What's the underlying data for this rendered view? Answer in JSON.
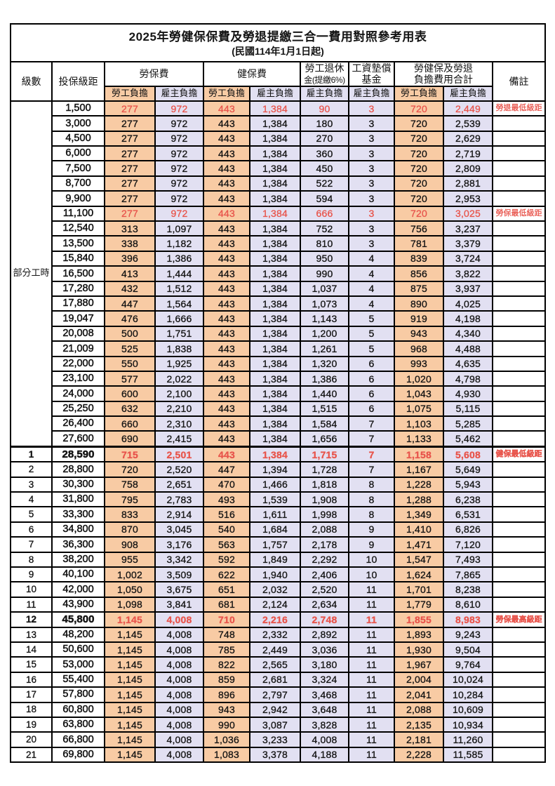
{
  "title": "2025年勞健保保費及勞退提繳三合一費用對照參考用表",
  "subtitle": "(民國114年1月1日起)",
  "colors": {
    "employee_fill": "#f8cba4",
    "employer_fill": "#e2e0f2",
    "highlight_text": "#e8554c",
    "grid": "#000000"
  },
  "header": {
    "level": "級數",
    "bracket": "投保級距",
    "labor_insurance": "勞保費",
    "health_insurance": "健保費",
    "pension_line1": "勞工退休",
    "pension_line2": "金(提繳6%)",
    "wage_fund_line1": "工資墊償",
    "wage_fund_line2": "基金",
    "total_line1": "勞健保及勞退",
    "total_line2": "負擔費用合計",
    "remark": "備註",
    "employee_share": "勞工負擔",
    "employer_share": "雇主負擔"
  },
  "group_label": "部分工時",
  "group_rows": 23,
  "rows": [
    {
      "level": "",
      "bracket": "1,500",
      "values": [
        "277",
        "972",
        "443",
        "1,384",
        "90",
        "3",
        "720",
        "2,449"
      ],
      "remark": "勞退最低級距",
      "red": true,
      "bold": false
    },
    {
      "level": "",
      "bracket": "3,000",
      "values": [
        "277",
        "972",
        "443",
        "1,384",
        "180",
        "3",
        "720",
        "2,539"
      ],
      "remark": "",
      "red": false,
      "bold": false
    },
    {
      "level": "",
      "bracket": "4,500",
      "values": [
        "277",
        "972",
        "443",
        "1,384",
        "270",
        "3",
        "720",
        "2,629"
      ],
      "remark": "",
      "red": false,
      "bold": false
    },
    {
      "level": "",
      "bracket": "6,000",
      "values": [
        "277",
        "972",
        "443",
        "1,384",
        "360",
        "3",
        "720",
        "2,719"
      ],
      "remark": "",
      "red": false,
      "bold": false
    },
    {
      "level": "",
      "bracket": "7,500",
      "values": [
        "277",
        "972",
        "443",
        "1,384",
        "450",
        "3",
        "720",
        "2,809"
      ],
      "remark": "",
      "red": false,
      "bold": false
    },
    {
      "level": "",
      "bracket": "8,700",
      "values": [
        "277",
        "972",
        "443",
        "1,384",
        "522",
        "3",
        "720",
        "2,881"
      ],
      "remark": "",
      "red": false,
      "bold": false
    },
    {
      "level": "",
      "bracket": "9,900",
      "values": [
        "277",
        "972",
        "443",
        "1,384",
        "594",
        "3",
        "720",
        "2,953"
      ],
      "remark": "",
      "red": false,
      "bold": false
    },
    {
      "level": "",
      "bracket": "11,100",
      "values": [
        "277",
        "972",
        "443",
        "1,384",
        "666",
        "3",
        "720",
        "3,025"
      ],
      "remark": "勞保最低級距",
      "red": true,
      "bold": false
    },
    {
      "level": "",
      "bracket": "12,540",
      "values": [
        "313",
        "1,097",
        "443",
        "1,384",
        "752",
        "3",
        "756",
        "3,237"
      ],
      "remark": "",
      "red": false,
      "bold": false
    },
    {
      "level": "",
      "bracket": "13,500",
      "values": [
        "338",
        "1,182",
        "443",
        "1,384",
        "810",
        "3",
        "781",
        "3,379"
      ],
      "remark": "",
      "red": false,
      "bold": false
    },
    {
      "level": "",
      "bracket": "15,840",
      "values": [
        "396",
        "1,386",
        "443",
        "1,384",
        "950",
        "4",
        "839",
        "3,724"
      ],
      "remark": "",
      "red": false,
      "bold": false
    },
    {
      "level": "",
      "bracket": "16,500",
      "values": [
        "413",
        "1,444",
        "443",
        "1,384",
        "990",
        "4",
        "856",
        "3,822"
      ],
      "remark": "",
      "red": false,
      "bold": false
    },
    {
      "level": "",
      "bracket": "17,280",
      "values": [
        "432",
        "1,512",
        "443",
        "1,384",
        "1,037",
        "4",
        "875",
        "3,937"
      ],
      "remark": "",
      "red": false,
      "bold": false
    },
    {
      "level": "",
      "bracket": "17,880",
      "values": [
        "447",
        "1,564",
        "443",
        "1,384",
        "1,073",
        "4",
        "890",
        "4,025"
      ],
      "remark": "",
      "red": false,
      "bold": false
    },
    {
      "level": "",
      "bracket": "19,047",
      "values": [
        "476",
        "1,666",
        "443",
        "1,384",
        "1,143",
        "5",
        "919",
        "4,198"
      ],
      "remark": "",
      "red": false,
      "bold": false
    },
    {
      "level": "",
      "bracket": "20,008",
      "values": [
        "500",
        "1,751",
        "443",
        "1,384",
        "1,200",
        "5",
        "943",
        "4,340"
      ],
      "remark": "",
      "red": false,
      "bold": false
    },
    {
      "level": "",
      "bracket": "21,009",
      "values": [
        "525",
        "1,838",
        "443",
        "1,384",
        "1,261",
        "5",
        "968",
        "4,488"
      ],
      "remark": "",
      "red": false,
      "bold": false
    },
    {
      "level": "",
      "bracket": "22,000",
      "values": [
        "550",
        "1,925",
        "443",
        "1,384",
        "1,320",
        "6",
        "993",
        "4,635"
      ],
      "remark": "",
      "red": false,
      "bold": false
    },
    {
      "level": "",
      "bracket": "23,100",
      "values": [
        "577",
        "2,022",
        "443",
        "1,384",
        "1,386",
        "6",
        "1,020",
        "4,798"
      ],
      "remark": "",
      "red": false,
      "bold": false
    },
    {
      "level": "",
      "bracket": "24,000",
      "values": [
        "600",
        "2,100",
        "443",
        "1,384",
        "1,440",
        "6",
        "1,043",
        "4,930"
      ],
      "remark": "",
      "red": false,
      "bold": false
    },
    {
      "level": "",
      "bracket": "25,250",
      "values": [
        "632",
        "2,210",
        "443",
        "1,384",
        "1,515",
        "6",
        "1,075",
        "5,115"
      ],
      "remark": "",
      "red": false,
      "bold": false
    },
    {
      "level": "",
      "bracket": "26,400",
      "values": [
        "660",
        "2,310",
        "443",
        "1,384",
        "1,584",
        "7",
        "1,103",
        "5,285"
      ],
      "remark": "",
      "red": false,
      "bold": false
    },
    {
      "level": "",
      "bracket": "27,600",
      "values": [
        "690",
        "2,415",
        "443",
        "1,384",
        "1,656",
        "7",
        "1,133",
        "5,462"
      ],
      "remark": "",
      "red": false,
      "bold": false
    },
    {
      "level": "1",
      "bracket": "28,590",
      "values": [
        "715",
        "2,501",
        "443",
        "1,384",
        "1,715",
        "7",
        "1,158",
        "5,608"
      ],
      "remark": "健保最低級距",
      "red": true,
      "bold": true
    },
    {
      "level": "2",
      "bracket": "28,800",
      "values": [
        "720",
        "2,520",
        "447",
        "1,394",
        "1,728",
        "7",
        "1,167",
        "5,649"
      ],
      "remark": "",
      "red": false,
      "bold": false
    },
    {
      "level": "3",
      "bracket": "30,300",
      "values": [
        "758",
        "2,651",
        "470",
        "1,466",
        "1,818",
        "8",
        "1,228",
        "5,943"
      ],
      "remark": "",
      "red": false,
      "bold": false
    },
    {
      "level": "4",
      "bracket": "31,800",
      "values": [
        "795",
        "2,783",
        "493",
        "1,539",
        "1,908",
        "8",
        "1,288",
        "6,238"
      ],
      "remark": "",
      "red": false,
      "bold": false
    },
    {
      "level": "5",
      "bracket": "33,300",
      "values": [
        "833",
        "2,914",
        "516",
        "1,611",
        "1,998",
        "8",
        "1,349",
        "6,531"
      ],
      "remark": "",
      "red": false,
      "bold": false
    },
    {
      "level": "6",
      "bracket": "34,800",
      "values": [
        "870",
        "3,045",
        "540",
        "1,684",
        "2,088",
        "9",
        "1,410",
        "6,826"
      ],
      "remark": "",
      "red": false,
      "bold": false
    },
    {
      "level": "7",
      "bracket": "36,300",
      "values": [
        "908",
        "3,176",
        "563",
        "1,757",
        "2,178",
        "9",
        "1,471",
        "7,120"
      ],
      "remark": "",
      "red": false,
      "bold": false
    },
    {
      "level": "8",
      "bracket": "38,200",
      "values": [
        "955",
        "3,342",
        "592",
        "1,849",
        "2,292",
        "10",
        "1,547",
        "7,493"
      ],
      "remark": "",
      "red": false,
      "bold": false
    },
    {
      "level": "9",
      "bracket": "40,100",
      "values": [
        "1,002",
        "3,509",
        "622",
        "1,940",
        "2,406",
        "10",
        "1,624",
        "7,865"
      ],
      "remark": "",
      "red": false,
      "bold": false
    },
    {
      "level": "10",
      "bracket": "42,000",
      "values": [
        "1,050",
        "3,675",
        "651",
        "2,032",
        "2,520",
        "11",
        "1,701",
        "8,238"
      ],
      "remark": "",
      "red": false,
      "bold": false
    },
    {
      "level": "11",
      "bracket": "43,900",
      "values": [
        "1,098",
        "3,841",
        "681",
        "2,124",
        "2,634",
        "11",
        "1,779",
        "8,610"
      ],
      "remark": "",
      "red": false,
      "bold": false
    },
    {
      "level": "12",
      "bracket": "45,800",
      "values": [
        "1,145",
        "4,008",
        "710",
        "2,216",
        "2,748",
        "11",
        "1,855",
        "8,983"
      ],
      "remark": "勞保最高級距",
      "red": true,
      "bold": true
    },
    {
      "level": "13",
      "bracket": "48,200",
      "values": [
        "1,145",
        "4,008",
        "748",
        "2,332",
        "2,892",
        "11",
        "1,893",
        "9,243"
      ],
      "remark": "",
      "red": false,
      "bold": false
    },
    {
      "level": "14",
      "bracket": "50,600",
      "values": [
        "1,145",
        "4,008",
        "785",
        "2,449",
        "3,036",
        "11",
        "1,930",
        "9,504"
      ],
      "remark": "",
      "red": false,
      "bold": false
    },
    {
      "level": "15",
      "bracket": "53,000",
      "values": [
        "1,145",
        "4,008",
        "822",
        "2,565",
        "3,180",
        "11",
        "1,967",
        "9,764"
      ],
      "remark": "",
      "red": false,
      "bold": false
    },
    {
      "level": "16",
      "bracket": "55,400",
      "values": [
        "1,145",
        "4,008",
        "859",
        "2,681",
        "3,324",
        "11",
        "2,004",
        "10,024"
      ],
      "remark": "",
      "red": false,
      "bold": false
    },
    {
      "level": "17",
      "bracket": "57,800",
      "values": [
        "1,145",
        "4,008",
        "896",
        "2,797",
        "3,468",
        "11",
        "2,041",
        "10,284"
      ],
      "remark": "",
      "red": false,
      "bold": false
    },
    {
      "level": "18",
      "bracket": "60,800",
      "values": [
        "1,145",
        "4,008",
        "943",
        "2,942",
        "3,648",
        "11",
        "2,088",
        "10,609"
      ],
      "remark": "",
      "red": false,
      "bold": false
    },
    {
      "level": "19",
      "bracket": "63,800",
      "values": [
        "1,145",
        "4,008",
        "990",
        "3,087",
        "3,828",
        "11",
        "2,135",
        "10,934"
      ],
      "remark": "",
      "red": false,
      "bold": false
    },
    {
      "level": "20",
      "bracket": "66,800",
      "values": [
        "1,145",
        "4,008",
        "1,036",
        "3,233",
        "4,008",
        "11",
        "2,181",
        "11,260"
      ],
      "remark": "",
      "red": false,
      "bold": false
    },
    {
      "level": "21",
      "bracket": "69,800",
      "values": [
        "1,145",
        "4,008",
        "1,083",
        "3,378",
        "4,188",
        "11",
        "2,228",
        "11,585"
      ],
      "remark": "",
      "red": false,
      "bold": false
    }
  ],
  "value_column_keys": [
    "labor-employee",
    "labor-employer",
    "health-employee",
    "health-employer",
    "pension-employer",
    "wage-fund-employer",
    "total-employee",
    "total-employer"
  ],
  "value_column_fills": [
    "emp",
    "er",
    "emp",
    "er",
    "er",
    "er",
    "emp",
    "er"
  ]
}
